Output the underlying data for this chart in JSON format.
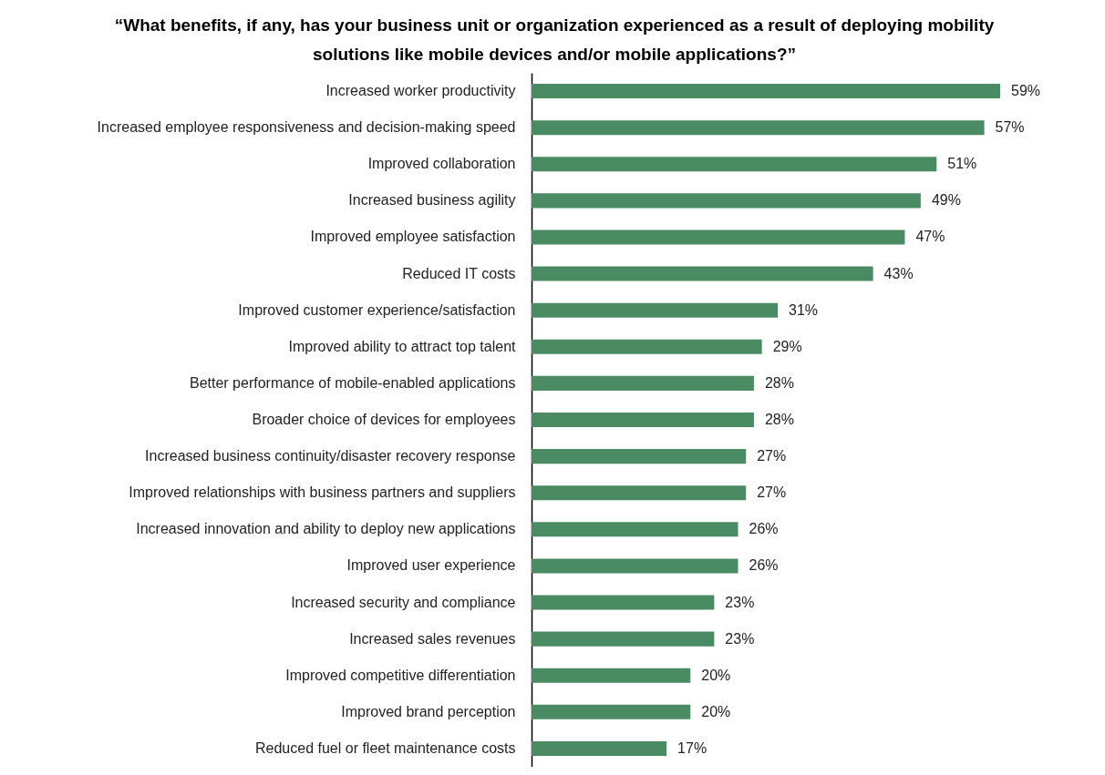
{
  "chart_data": {
    "type": "bar",
    "orientation": "horizontal",
    "title": "“What benefits, if any, has your business unit or organization experienced as a result of deploying mobility solutions like mobile devices and/or mobile applications?”",
    "categories": [
      "Increased worker productivity",
      "Increased employee responsiveness and decision-making speed",
      "Improved collaboration",
      "Increased business agility",
      "Improved employee satisfaction",
      "Reduced IT costs",
      "Improved customer experience/satisfaction",
      "Improved ability to attract top talent",
      "Better performance of mobile-enabled applications",
      "Broader choice of devices for employees",
      "Increased business continuity/disaster recovery response",
      "Improved relationships with business partners and suppliers",
      "Increased innovation and ability to deploy new applications",
      "Improved user experience",
      "Increased security and compliance",
      "Increased sales revenues",
      "Improved competitive differentiation",
      "Improved brand perception",
      "Reduced fuel or fleet maintenance costs"
    ],
    "values": [
      59,
      57,
      51,
      49,
      47,
      43,
      31,
      29,
      28,
      28,
      27,
      27,
      26,
      26,
      23,
      23,
      20,
      20,
      17
    ],
    "value_labels": [
      "59%",
      "57%",
      "51%",
      "49%",
      "47%",
      "43%",
      "31%",
      "29%",
      "28%",
      "28%",
      "27%",
      "27%",
      "26%",
      "26%",
      "23%",
      "23%",
      "20%",
      "20%",
      "17%"
    ],
    "color": "#4a8b63",
    "grid": false
  }
}
